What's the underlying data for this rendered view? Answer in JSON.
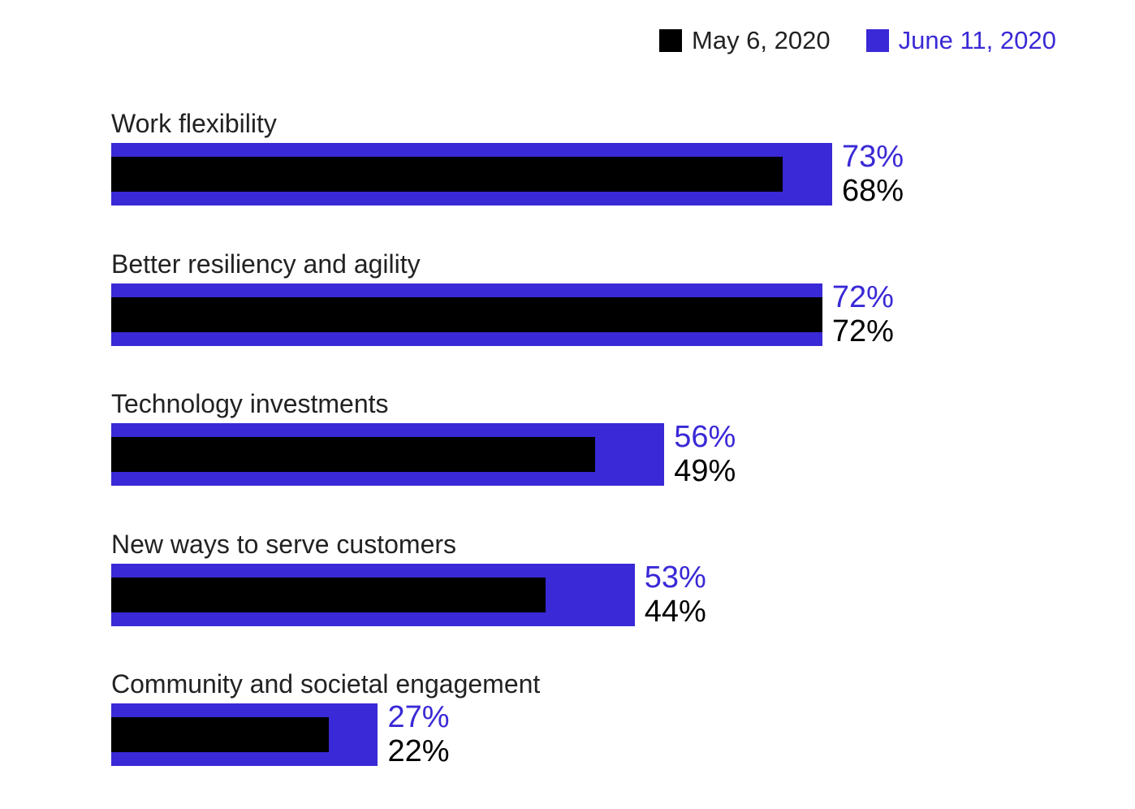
{
  "legend": {
    "series_a": "May 6, 2020",
    "series_b": "June 11, 2020"
  },
  "colors": {
    "series_a": "#000000",
    "series_b": "#3a29d6"
  },
  "chart_data": {
    "type": "bar",
    "orientation": "horizontal",
    "categories": [
      "Work flexibility",
      "Better resiliency and agility",
      "Technology investments",
      "New ways to serve customers",
      "Community and societal engagement"
    ],
    "series": [
      {
        "name": "May 6, 2020",
        "values": [
          68,
          72,
          49,
          44,
          22
        ],
        "labels": [
          "68%",
          "72%",
          "49%",
          "44%",
          "22%"
        ]
      },
      {
        "name": "June 11, 2020",
        "values": [
          73,
          72,
          56,
          53,
          27
        ],
        "labels": [
          "73%",
          "72%",
          "56%",
          "53%",
          "27%"
        ]
      }
    ],
    "unit": "%",
    "legend_position": "top-right",
    "grid": false
  }
}
